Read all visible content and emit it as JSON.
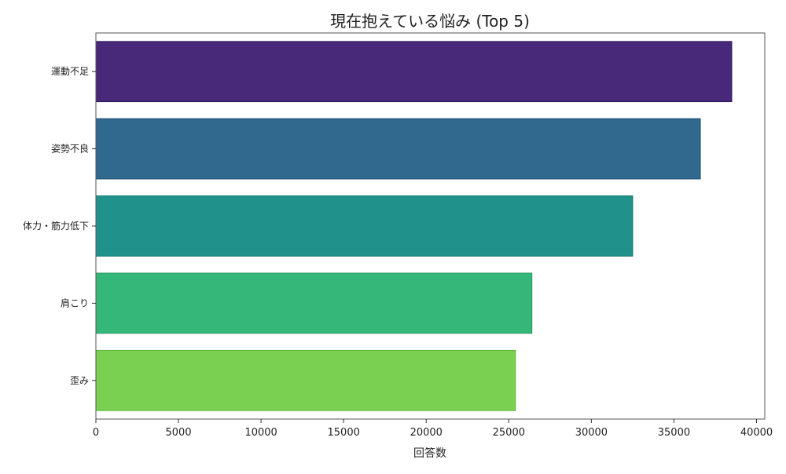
{
  "chart_data": {
    "type": "bar",
    "orientation": "horizontal",
    "title": "現在抱えている悩み (Top 5)",
    "xlabel": "回答数",
    "ylabel": "",
    "categories": [
      "運動不足",
      "姿勢不良",
      "体力・筋力低下",
      "肩こり",
      "歪み"
    ],
    "values": [
      38500,
      36600,
      32500,
      26400,
      25400
    ],
    "colors": [
      "#482878",
      "#31688e",
      "#21918c",
      "#35b779",
      "#7ad151"
    ],
    "edge_colors": [
      "#2a1a5e",
      "#1f4f72",
      "#127570",
      "#2a9a60",
      "#5fb03a"
    ],
    "xlim": [
      0,
      40500
    ],
    "xticks": [
      0,
      5000,
      10000,
      15000,
      20000,
      25000,
      30000,
      35000,
      40000
    ],
    "xtick_labels": [
      "0",
      "5000",
      "10000",
      "15000",
      "20000",
      "25000",
      "30000",
      "35000",
      "40000"
    ],
    "grid": false,
    "legend": "none"
  }
}
